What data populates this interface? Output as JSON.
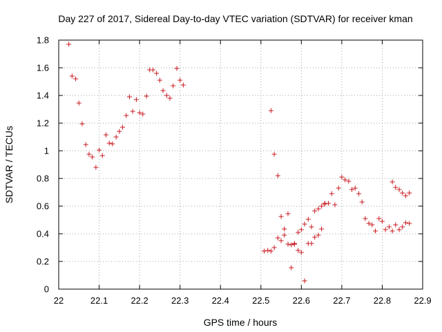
{
  "chart_data": {
    "type": "scatter",
    "title": "Day 227 of 2017, Sidereal Day-to-day VTEC variation (SDTVAR) for receiver kman",
    "xlabel": "GPS time / hours",
    "ylabel": "SDTVAR / TECUs",
    "xlim": [
      22.0,
      22.9
    ],
    "ylim": [
      0,
      1.8
    ],
    "xticks": [
      "22",
      "22.1",
      "22.2",
      "22.3",
      "22.4",
      "22.5",
      "22.6",
      "22.7",
      "22.8",
      "22.9"
    ],
    "yticks": [
      "0",
      "0.2",
      "0.4",
      "0.6",
      "0.8",
      "1",
      "1.2",
      "1.4",
      "1.6",
      "1.8"
    ],
    "grid": true,
    "marker": "+",
    "color": "#c8171e",
    "series": [
      {
        "name": "SDTVAR",
        "x": [
          22.025,
          22.033,
          22.042,
          22.05,
          22.058,
          22.067,
          22.075,
          22.083,
          22.092,
          22.1,
          22.108,
          22.117,
          22.125,
          22.133,
          22.142,
          22.15,
          22.158,
          22.167,
          22.175,
          22.183,
          22.192,
          22.2,
          22.208,
          22.217,
          22.225,
          22.233,
          22.242,
          22.25,
          22.258,
          22.267,
          22.275,
          22.283,
          22.292,
          22.3,
          22.308,
          22.508,
          22.517,
          22.525,
          22.533,
          22.542,
          22.55,
          22.558,
          22.567,
          22.575,
          22.583,
          22.592,
          22.6,
          22.608,
          22.617,
          22.625,
          22.633,
          22.642,
          22.65,
          22.658,
          22.667,
          22.675,
          22.683,
          22.692,
          22.7,
          22.708,
          22.717,
          22.725,
          22.733,
          22.742,
          22.75,
          22.758,
          22.767,
          22.775,
          22.783,
          22.792,
          22.8,
          22.808,
          22.817,
          22.825,
          22.833,
          22.842,
          22.85,
          22.858,
          22.867,
          22.525,
          22.533,
          22.542,
          22.55,
          22.558,
          22.567,
          22.575,
          22.583,
          22.592,
          22.6,
          22.608,
          22.617,
          22.625,
          22.633,
          22.642,
          22.65,
          22.658,
          22.825,
          22.833,
          22.842,
          22.85,
          22.858,
          22.867
        ],
        "y": [
          1.77,
          1.54,
          1.52,
          1.345,
          1.195,
          1.045,
          0.975,
          0.955,
          0.88,
          1.005,
          0.965,
          1.115,
          1.055,
          1.05,
          1.1,
          1.14,
          1.17,
          1.255,
          1.39,
          1.285,
          1.37,
          1.275,
          1.265,
          1.395,
          1.585,
          1.585,
          1.56,
          1.51,
          1.435,
          1.4,
          1.38,
          1.47,
          1.595,
          1.51,
          1.475,
          0.275,
          0.28,
          0.275,
          0.3,
          0.37,
          0.35,
          0.39,
          0.325,
          0.155,
          0.325,
          0.28,
          0.265,
          0.06,
          0.33,
          0.33,
          0.375,
          0.39,
          0.435,
          0.615,
          0.62,
          0.69,
          0.61,
          0.73,
          0.81,
          0.79,
          0.78,
          0.72,
          0.73,
          0.69,
          0.63,
          0.51,
          0.475,
          0.465,
          0.42,
          0.51,
          0.49,
          0.43,
          0.45,
          0.42,
          0.465,
          0.43,
          0.45,
          0.48,
          0.475,
          1.29,
          0.975,
          0.82,
          0.525,
          0.435,
          0.545,
          0.32,
          0.33,
          0.41,
          0.43,
          0.47,
          0.505,
          0.45,
          0.565,
          0.58,
          0.6,
          0.62,
          0.775,
          0.735,
          0.72,
          0.695,
          0.675,
          0.695
        ]
      }
    ]
  }
}
